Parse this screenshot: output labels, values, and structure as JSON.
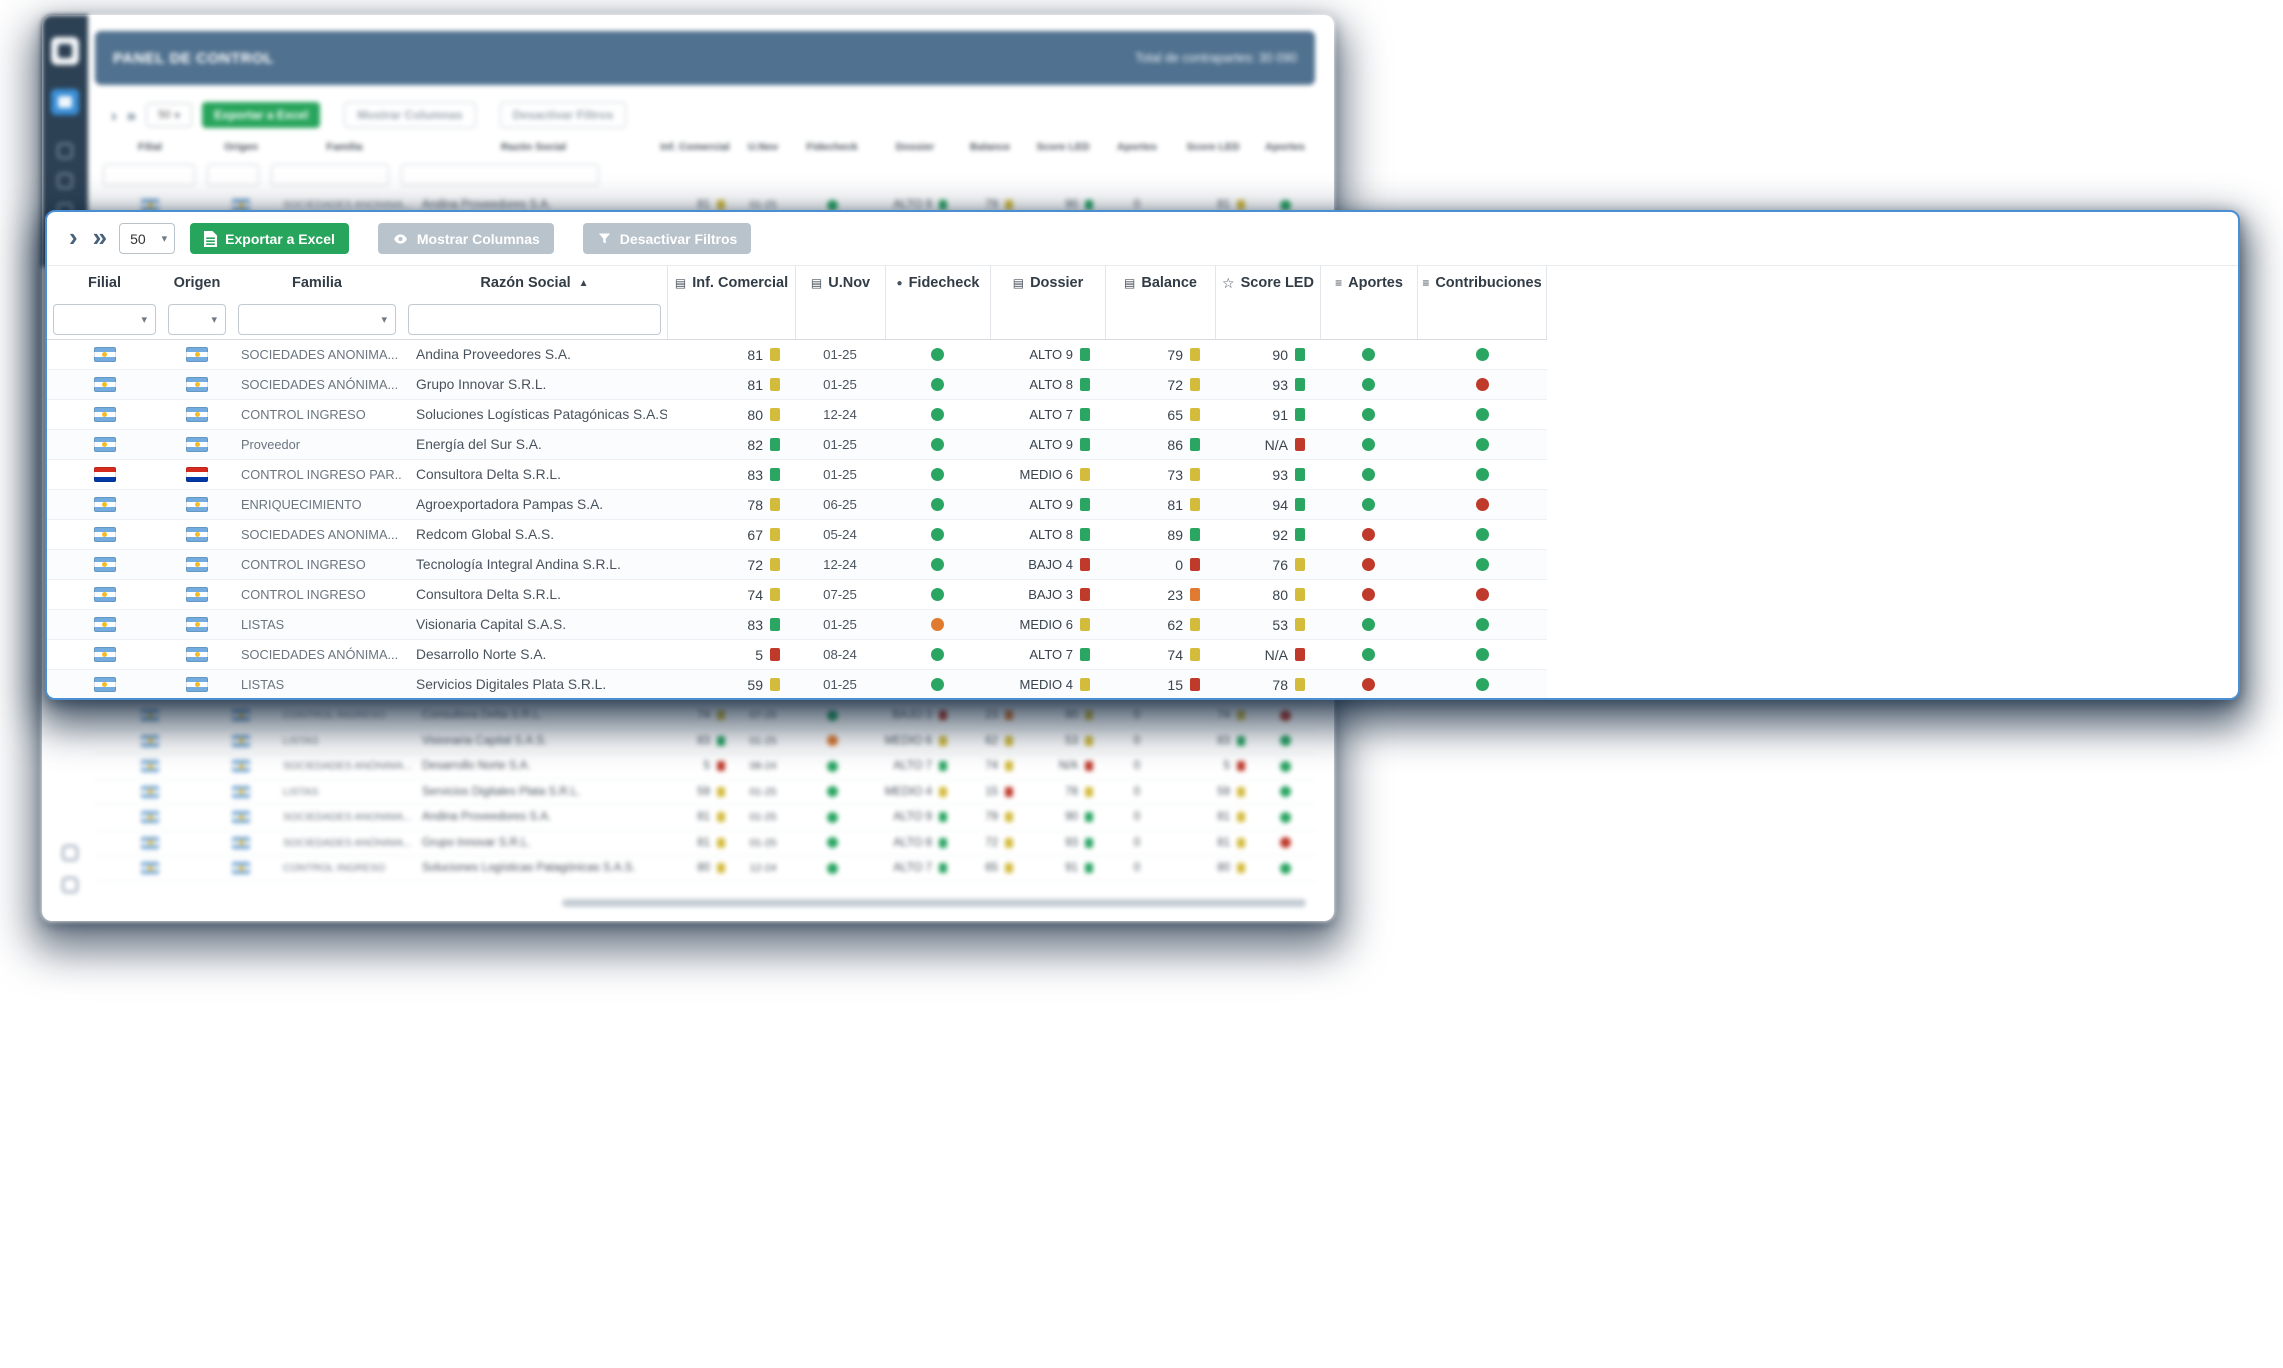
{
  "colors": {
    "green": "#2aa562",
    "yellow": "#d3bb3c",
    "red": "#bf3a2b",
    "orange": "#e07a30",
    "accent_blue": "#4a8fd1",
    "button_green": "#28a55c",
    "button_gray": "#b8c3cc",
    "header_slate": "#50718f",
    "rail_navy": "#2d4154"
  },
  "panel": {
    "toolbar": {
      "page_size": "50",
      "export_label": "Exportar a Excel",
      "columns_label": "Mostrar Columnas",
      "filters_label": "Desactivar Filtros"
    },
    "columns": [
      {
        "label": "Filial"
      },
      {
        "label": "Origen"
      },
      {
        "label": "Familia"
      },
      {
        "label": "Razón Social",
        "sort": "asc"
      },
      {
        "label": "Inf. Comercial",
        "icon": "document-icon"
      },
      {
        "label": "U.Nov",
        "icon": "document-icon"
      },
      {
        "label": "Fidecheck",
        "icon": "circle-icon"
      },
      {
        "label": "Dossier",
        "icon": "document-icon"
      },
      {
        "label": "Balance",
        "icon": "document-icon"
      },
      {
        "label": "Score LED",
        "icon": "star-icon"
      },
      {
        "label": "Aportes",
        "icon": "rows-icon"
      },
      {
        "label": "Contribuciones",
        "icon": "rows-icon"
      }
    ],
    "rows": [
      {
        "filial": "ar",
        "origen": "ar",
        "familia": "SOCIEDADES ANONIMA...",
        "razon": "Andina Proveedores S.A.",
        "inf": {
          "v": "81",
          "c": "yellow"
        },
        "unov": "01-25",
        "fide": "green",
        "dossier": {
          "v": "ALTO 9",
          "c": "green"
        },
        "balance": {
          "v": "79",
          "c": "yellow"
        },
        "score": {
          "v": "90",
          "c": "green"
        },
        "aportes": "green",
        "contrib": "green"
      },
      {
        "filial": "ar",
        "origen": "ar",
        "familia": "SOCIEDADES ANÓNIMA...",
        "razon": "Grupo Innovar S.R.L.",
        "inf": {
          "v": "81",
          "c": "yellow"
        },
        "unov": "01-25",
        "fide": "green",
        "dossier": {
          "v": "ALTO 8",
          "c": "green"
        },
        "balance": {
          "v": "72",
          "c": "yellow"
        },
        "score": {
          "v": "93",
          "c": "green"
        },
        "aportes": "green",
        "contrib": "red"
      },
      {
        "filial": "ar",
        "origen": "ar",
        "familia": "CONTROL INGRESO",
        "razon": "Soluciones Logísticas Patagónicas S.A.S.",
        "inf": {
          "v": "80",
          "c": "yellow"
        },
        "unov": "12-24",
        "fide": "green",
        "dossier": {
          "v": "ALTO 7",
          "c": "green"
        },
        "balance": {
          "v": "65",
          "c": "yellow"
        },
        "score": {
          "v": "91",
          "c": "green"
        },
        "aportes": "green",
        "contrib": "green"
      },
      {
        "filial": "ar",
        "origen": "ar",
        "familia": "Proveedor",
        "razon": "Energía del Sur S.A.",
        "inf": {
          "v": "82",
          "c": "green"
        },
        "unov": "01-25",
        "fide": "green",
        "dossier": {
          "v": "ALTO 9",
          "c": "green"
        },
        "balance": {
          "v": "86",
          "c": "green"
        },
        "score": {
          "v": "N/A",
          "c": "red"
        },
        "aportes": "green",
        "contrib": "green"
      },
      {
        "filial": "py",
        "origen": "py",
        "familia": "CONTROL INGRESO PAR...",
        "razon": "Consultora Delta S.R.L.",
        "inf": {
          "v": "83",
          "c": "green"
        },
        "unov": "01-25",
        "fide": "green",
        "dossier": {
          "v": "MEDIO 6",
          "c": "yellow"
        },
        "balance": {
          "v": "73",
          "c": "yellow"
        },
        "score": {
          "v": "93",
          "c": "green"
        },
        "aportes": "green",
        "contrib": "green"
      },
      {
        "filial": "ar",
        "origen": "ar",
        "familia": "ENRIQUECIMIENTO",
        "razon": "Agroexportadora Pampas S.A.",
        "inf": {
          "v": "78",
          "c": "yellow"
        },
        "unov": "06-25",
        "fide": "green",
        "dossier": {
          "v": "ALTO 9",
          "c": "green"
        },
        "balance": {
          "v": "81",
          "c": "yellow"
        },
        "score": {
          "v": "94",
          "c": "green"
        },
        "aportes": "green",
        "contrib": "red"
      },
      {
        "filial": "ar",
        "origen": "ar",
        "familia": "SOCIEDADES ANONIMA...",
        "razon": "Redcom Global S.A.S.",
        "inf": {
          "v": "67",
          "c": "yellow"
        },
        "unov": "05-24",
        "fide": "green",
        "dossier": {
          "v": "ALTO 8",
          "c": "green"
        },
        "balance": {
          "v": "89",
          "c": "green"
        },
        "score": {
          "v": "92",
          "c": "green"
        },
        "aportes": "red",
        "contrib": "green"
      },
      {
        "filial": "ar",
        "origen": "ar",
        "familia": "CONTROL INGRESO",
        "razon": "Tecnología Integral Andina S.R.L.",
        "inf": {
          "v": "72",
          "c": "yellow"
        },
        "unov": "12-24",
        "fide": "green",
        "dossier": {
          "v": "BAJO 4",
          "c": "red"
        },
        "balance": {
          "v": "0",
          "c": "red"
        },
        "score": {
          "v": "76",
          "c": "yellow"
        },
        "aportes": "red",
        "contrib": "green"
      },
      {
        "filial": "ar",
        "origen": "ar",
        "familia": "CONTROL INGRESO",
        "razon": "Consultora Delta S.R.L.",
        "inf": {
          "v": "74",
          "c": "yellow"
        },
        "unov": "07-25",
        "fide": "green",
        "dossier": {
          "v": "BAJO 3",
          "c": "red"
        },
        "balance": {
          "v": "23",
          "c": "orange"
        },
        "score": {
          "v": "80",
          "c": "yellow"
        },
        "aportes": "red",
        "contrib": "red"
      },
      {
        "filial": "ar",
        "origen": "ar",
        "familia": "LISTAS",
        "razon": "Visionaria Capital S.A.S.",
        "inf": {
          "v": "83",
          "c": "green"
        },
        "unov": "01-25",
        "fide": "orange",
        "dossier": {
          "v": "MEDIO 6",
          "c": "yellow"
        },
        "balance": {
          "v": "62",
          "c": "yellow"
        },
        "score": {
          "v": "53",
          "c": "yellow"
        },
        "aportes": "green",
        "contrib": "green"
      },
      {
        "filial": "ar",
        "origen": "ar",
        "familia": "SOCIEDADES ANÓNIMA...",
        "razon": "Desarrollo Norte S.A.",
        "inf": {
          "v": "5",
          "c": "red"
        },
        "unov": "08-24",
        "fide": "green",
        "dossier": {
          "v": "ALTO 7",
          "c": "green"
        },
        "balance": {
          "v": "74",
          "c": "yellow"
        },
        "score": {
          "v": "N/A",
          "c": "red"
        },
        "aportes": "green",
        "contrib": "green"
      },
      {
        "filial": "ar",
        "origen": "ar",
        "familia": "LISTAS",
        "razon": "Servicios Digitales Plata S.R.L.",
        "inf": {
          "v": "59",
          "c": "yellow"
        },
        "unov": "01-25",
        "fide": "green",
        "dossier": {
          "v": "MEDIO 4",
          "c": "yellow"
        },
        "balance": {
          "v": "15",
          "c": "red"
        },
        "score": {
          "v": "78",
          "c": "yellow"
        },
        "aportes": "red",
        "contrib": "green"
      }
    ]
  },
  "background_window": {
    "title": "PANEL DE CONTROL",
    "counter": "Total de contrapartes: 30 090",
    "toolbar": {
      "page_size": "50",
      "export_label": "Exportar a Excel",
      "columns_label": "Mostrar Columnas",
      "filters_label": "Desactivar Filtros"
    },
    "columns": [
      "Filial",
      "Origen",
      "Familia",
      "Razón Social",
      "Inf. Comercial",
      "U.Nov",
      "Fidecheck",
      "Dossier",
      "Balance",
      "Score LED",
      "Aportes",
      "Score LED",
      "Aportes"
    ]
  }
}
